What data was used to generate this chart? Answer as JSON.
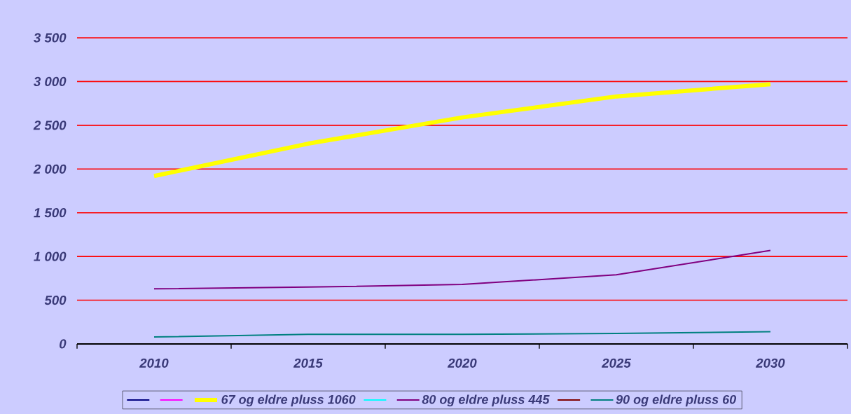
{
  "chart_data": {
    "type": "line",
    "categories": [
      "2010",
      "2015",
      "2020",
      "2025",
      "2030"
    ],
    "series": [
      {
        "color": "#000080",
        "values": [
          null,
          null,
          null,
          null,
          null
        ]
      },
      {
        "color": "#ff00ff",
        "values": [
          null,
          null,
          null,
          null,
          null
        ]
      },
      {
        "name": "67 og eldre pluss 1060",
        "color": "#ffff00",
        "values": [
          1920,
          2290,
          2590,
          2830,
          2970
        ]
      },
      {
        "color": "#00ffff",
        "values": [
          null,
          null,
          null,
          null,
          null
        ]
      },
      {
        "name": "80 og eldre pluss 445",
        "color": "#800080",
        "values": [
          630,
          650,
          680,
          790,
          1070
        ]
      },
      {
        "color": "#800000",
        "values": [
          null,
          null,
          null,
          null,
          null
        ]
      },
      {
        "name": "90 og eldre pluss 60",
        "color": "#008080",
        "values": [
          80,
          110,
          110,
          120,
          140
        ]
      }
    ],
    "ylim": [
      0,
      3500
    ],
    "yticks": [
      0,
      500,
      {
        "value": 1000,
        "label": "1 000"
      },
      {
        "value": 1500,
        "label": "1 500"
      },
      {
        "value": 2000,
        "label": "2 000"
      },
      {
        "value": 2500,
        "label": "2 500"
      },
      {
        "value": 3000,
        "label": "3 000"
      },
      {
        "value": 3500,
        "label": "3 500"
      }
    ],
    "grid": "y",
    "legend": "bottom"
  }
}
